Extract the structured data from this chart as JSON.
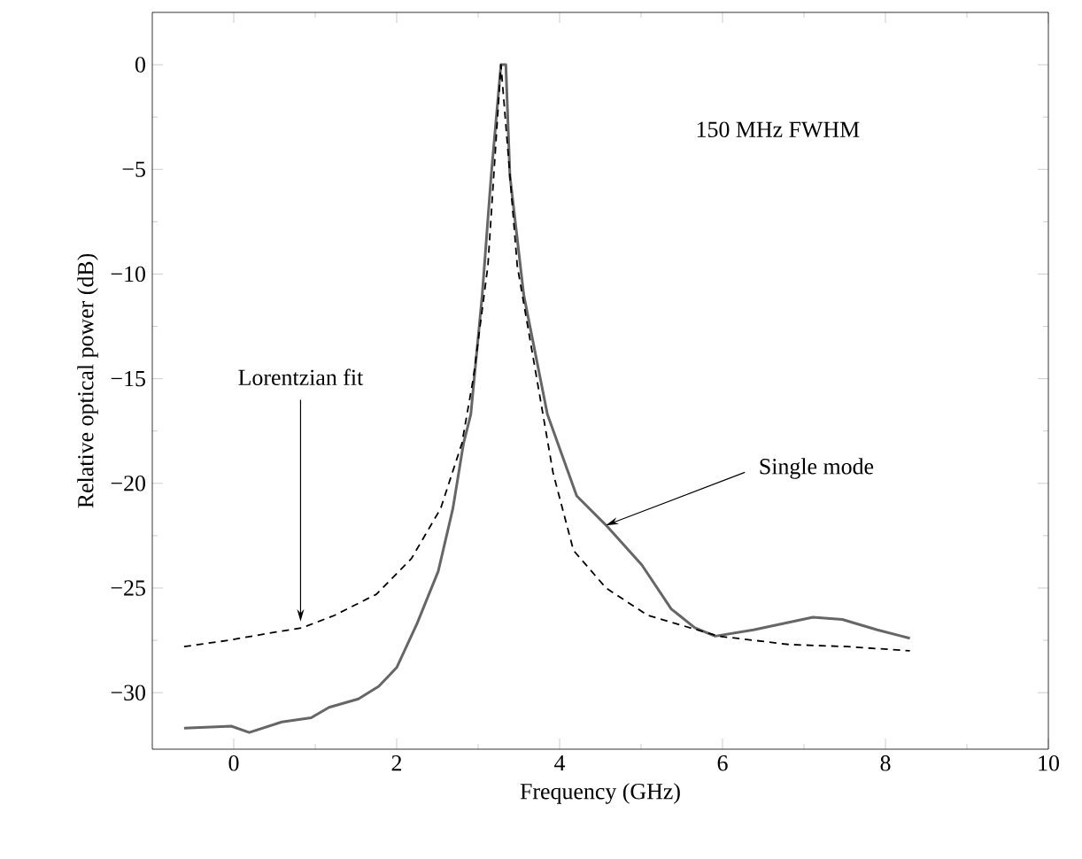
{
  "chart_data": {
    "type": "line",
    "xlabel": "Frequency (GHz)",
    "ylabel": "Relative optical power (dB)",
    "xlim": [
      -1,
      10
    ],
    "ylim": [
      -32.7,
      2.5
    ],
    "xticks": [
      0,
      2,
      4,
      6,
      8,
      10
    ],
    "yticks": [
      {
        "value": 0,
        "label": "0"
      },
      {
        "value": -5,
        "label": "−5"
      },
      {
        "value": -10,
        "label": "−10"
      },
      {
        "value": -15,
        "label": "−15"
      },
      {
        "value": -20,
        "label": "−20"
      },
      {
        "value": -25,
        "label": "−25"
      },
      {
        "value": -30,
        "label": "−30"
      }
    ],
    "grid": false,
    "marker": "none",
    "series": [
      {
        "color": "#666666",
        "line_style": "solid",
        "x": [
          -0.61,
          -0.03,
          0.19,
          0.59,
          0.95,
          1.17,
          1.53,
          1.78,
          2.0,
          2.25,
          2.51,
          2.69,
          2.82,
          2.91,
          3.05,
          3.16,
          3.28,
          3.34,
          3.39,
          3.56,
          3.85,
          4.21,
          4.57,
          5.01,
          5.37,
          5.66,
          5.91,
          6.38,
          7.11,
          7.47,
          7.9,
          8.3
        ],
        "values": [
          -31.7,
          -31.6,
          -31.9,
          -31.4,
          -31.2,
          -30.7,
          -30.3,
          -29.7,
          -28.8,
          -26.7,
          -24.2,
          -21.2,
          -18.1,
          -16.7,
          -11.0,
          -5.3,
          0.0,
          0.0,
          -5.3,
          -11.0,
          -16.7,
          -20.6,
          -22.0,
          -23.9,
          -26.0,
          -26.9,
          -27.3,
          -27.0,
          -26.4,
          -26.5,
          -27.0,
          -27.4
        ]
      },
      {
        "color": "#000000",
        "line_style": "dashed",
        "x": [
          -0.61,
          -0.07,
          0.52,
          0.84,
          1.24,
          1.75,
          2.18,
          2.54,
          2.8,
          2.94,
          3.12,
          3.28,
          3.48,
          3.72,
          3.92,
          4.17,
          4.57,
          5.08,
          5.95,
          6.82,
          7.54,
          8.3
        ],
        "values": [
          -27.8,
          -27.5,
          -27.1,
          -26.9,
          -26.3,
          -25.3,
          -23.6,
          -21.2,
          -18.1,
          -15.0,
          -9.6,
          0.0,
          -9.6,
          -15.0,
          -19.5,
          -23.2,
          -25.0,
          -26.3,
          -27.3,
          -27.7,
          -27.8,
          -28.0
        ]
      }
    ],
    "annotations": [
      "150 MHz FWHM",
      {
        "text": "Lorentzian fit",
        "x": 0.82,
        "y": -26.6
      },
      {
        "text": "Single mode",
        "x": 4.57,
        "y": -22.0
      }
    ]
  }
}
